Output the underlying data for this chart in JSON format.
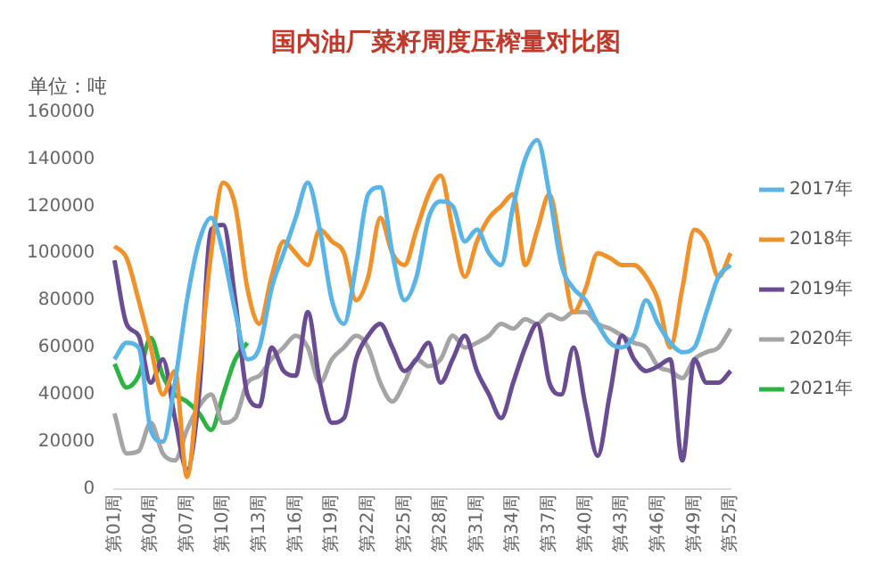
{
  "chart_data": {
    "type": "line",
    "title": "国内油厂菜籽周度压榨量对比图",
    "ylabel": "单位：吨",
    "categories": [
      "第01周",
      null,
      null,
      "第04周",
      null,
      null,
      "第07周",
      null,
      null,
      "第10周",
      null,
      null,
      "第13周",
      null,
      null,
      "第16周",
      null,
      null,
      "第19周",
      null,
      null,
      "第22周",
      null,
      null,
      "第25周",
      null,
      null,
      "第28周",
      null,
      null,
      "第31周",
      null,
      null,
      "第34周",
      null,
      null,
      "第37周",
      null,
      null,
      "第40周",
      null,
      null,
      "第43周",
      null,
      null,
      "第46周",
      null,
      null,
      "第49周",
      null,
      null,
      "第52周"
    ],
    "ylim": [
      0,
      160000
    ],
    "yticks": [
      0,
      20000,
      40000,
      60000,
      80000,
      100000,
      120000,
      140000,
      160000
    ],
    "legend": "right",
    "marker": "none",
    "line_style": "solid",
    "series": [
      {
        "name": "2017年",
        "color": "#5ab4e5",
        "values": [
          55000,
          62000,
          60000,
          25000,
          20000,
          45000,
          80000,
          105000,
          115000,
          100000,
          75000,
          55000,
          60000,
          85000,
          100000,
          115000,
          130000,
          110000,
          80000,
          70000,
          95000,
          125000,
          128000,
          100000,
          80000,
          90000,
          115000,
          122000,
          120000,
          105000,
          110000,
          100000,
          95000,
          120000,
          140000,
          148000,
          125000,
          95000,
          85000,
          80000,
          70000,
          62000,
          60000,
          65000,
          80000,
          70000,
          62000,
          58000,
          60000,
          75000,
          90000,
          95000
        ]
      },
      {
        "name": "2018年",
        "color": "#f0922b",
        "values": [
          103000,
          98000,
          80000,
          60000,
          40000,
          50000,
          5000,
          50000,
          100000,
          130000,
          120000,
          85000,
          70000,
          90000,
          105000,
          100000,
          95000,
          110000,
          105000,
          100000,
          80000,
          90000,
          115000,
          100000,
          95000,
          110000,
          125000,
          133000,
          110000,
          90000,
          105000,
          115000,
          120000,
          125000,
          95000,
          110000,
          125000,
          100000,
          75000,
          85000,
          100000,
          98000,
          95000,
          95000,
          90000,
          80000,
          60000,
          85000,
          110000,
          105000,
          90000,
          100000
        ]
      },
      {
        "name": "2019年",
        "color": "#6a4c93",
        "values": [
          97000,
          70000,
          65000,
          45000,
          55000,
          30000,
          8000,
          40000,
          110000,
          112000,
          80000,
          40000,
          35000,
          60000,
          50000,
          48000,
          75000,
          45000,
          28000,
          30000,
          55000,
          65000,
          70000,
          60000,
          50000,
          55000,
          62000,
          45000,
          55000,
          65000,
          50000,
          40000,
          30000,
          45000,
          60000,
          70000,
          45000,
          40000,
          60000,
          35000,
          14000,
          40000,
          65000,
          55000,
          50000,
          52000,
          55000,
          12000,
          55000,
          45000,
          45000,
          50000
        ]
      },
      {
        "name": "2020年",
        "color": "#a5a5a5",
        "values": [
          32000,
          15000,
          16000,
          28000,
          15000,
          12000,
          25000,
          35000,
          40000,
          28000,
          30000,
          45000,
          48000,
          55000,
          60000,
          65000,
          60000,
          45000,
          55000,
          60000,
          65000,
          60000,
          45000,
          37000,
          45000,
          55000,
          52000,
          55000,
          65000,
          60000,
          62000,
          65000,
          70000,
          68000,
          72000,
          70000,
          74000,
          72000,
          75000,
          75000,
          70000,
          68000,
          65000,
          62000,
          60000,
          52000,
          50000,
          47000,
          55000,
          58000,
          60000,
          68000
        ]
      },
      {
        "name": "2021年",
        "color": "#2db342",
        "values": [
          53000,
          43000,
          48000,
          64000,
          48000,
          40000,
          37000,
          32000,
          25000,
          40000,
          55000,
          62000,
          null,
          null,
          null,
          null,
          null,
          null,
          null,
          null,
          null,
          null,
          null,
          null,
          null,
          null,
          null,
          null,
          null,
          null,
          null,
          null,
          null,
          null,
          null,
          null,
          null,
          null,
          null,
          null,
          null,
          null,
          null,
          null,
          null,
          null,
          null,
          null,
          null,
          null,
          null,
          null
        ]
      }
    ]
  }
}
